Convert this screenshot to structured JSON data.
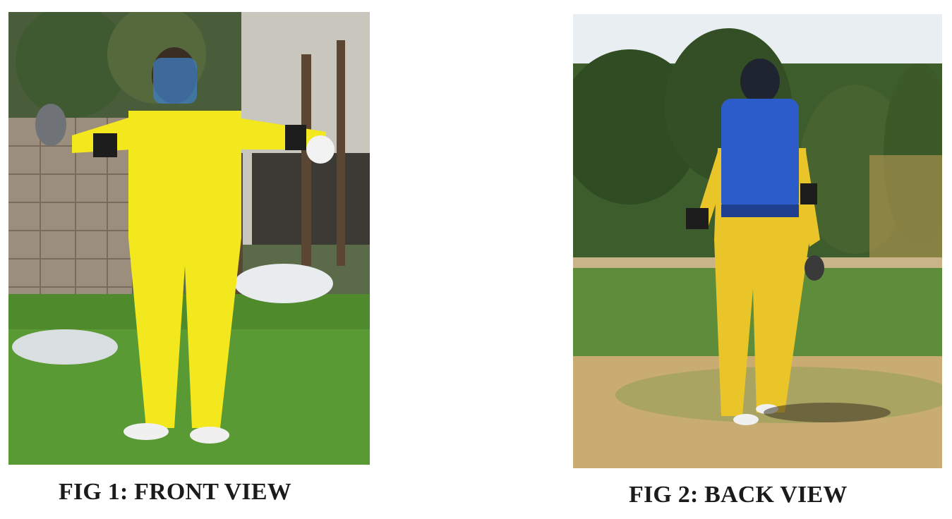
{
  "figures": [
    {
      "caption": "FIG 1: FRONT VIEW",
      "suit_color": "#f3e81e",
      "visor_color": "#3f7fc4"
    },
    {
      "caption": "FIG 2: BACK VIEW",
      "suit_color": "#e9c52a",
      "backpack_color": "#2c5cc9"
    }
  ]
}
